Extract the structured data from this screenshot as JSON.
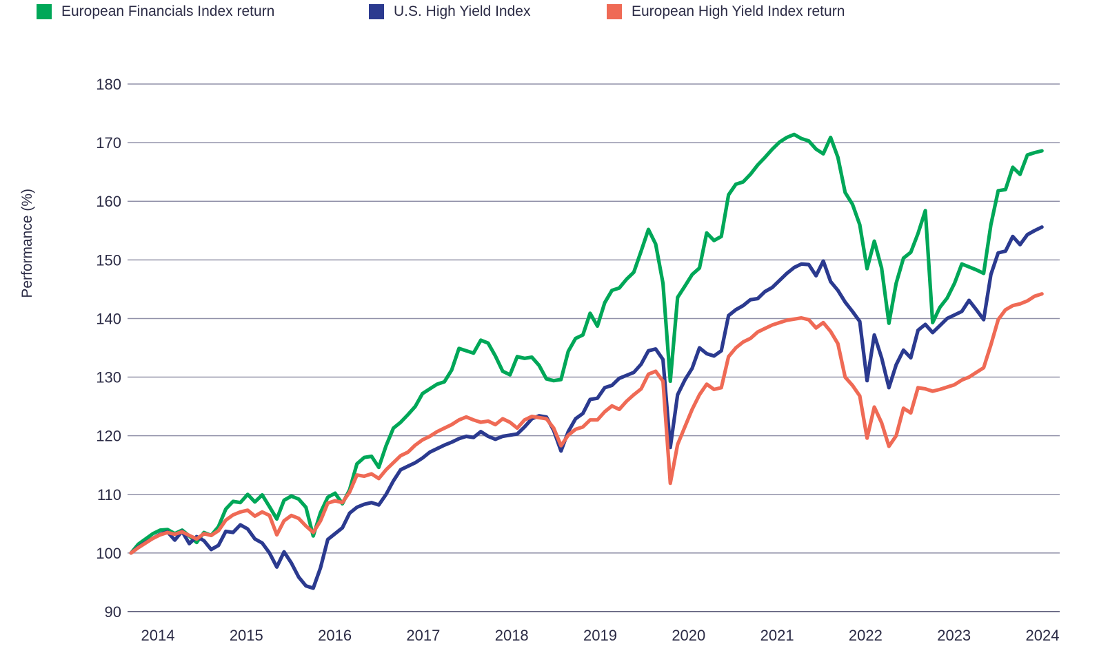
{
  "chart_data": {
    "type": "line",
    "title": "",
    "ylabel": "Performance (%)",
    "xlabel": "",
    "ylim": [
      90,
      180
    ],
    "yticks": [
      90,
      100,
      110,
      120,
      130,
      140,
      150,
      160,
      170,
      180
    ],
    "xticks": [
      "2014",
      "2015",
      "2016",
      "2017",
      "2018",
      "2019",
      "2020",
      "2021",
      "2022",
      "2023",
      "2024"
    ],
    "grid": "horizontal-only",
    "legend_position": "top-left-row",
    "x_start_year": 2014,
    "x_interval": "monthly",
    "x_end": "mid-2024",
    "axis_text_color": "#2B2B45",
    "gridline_color": "#9191A8",
    "series": [
      {
        "name": "European Financials Index return",
        "color": "#00A758",
        "values": [
          100,
          101.5,
          102.4,
          103.3,
          103.9,
          104,
          103.3,
          103.9,
          102.9,
          101.8,
          103.5,
          103,
          104.5,
          107.5,
          108.8,
          108.6,
          110,
          108.7,
          109.9,
          107.9,
          105.8,
          109,
          109.7,
          109.2,
          107.8,
          102.9,
          106.9,
          109.5,
          110.2,
          108.4,
          110.8,
          115.2,
          116.3,
          116.5,
          114.6,
          118.3,
          121.3,
          122.3,
          123.6,
          125,
          127.2,
          128,
          128.8,
          129.2,
          131.2,
          134.9,
          134.5,
          134.1,
          136.3,
          135.8,
          133.6,
          131,
          130.4,
          133.5,
          133.2,
          133.4,
          132,
          129.7,
          129.4,
          129.6,
          134.4,
          136.6,
          137.2,
          140.9,
          138.7,
          142.7,
          144.8,
          145.2,
          146.7,
          147.9,
          151.5,
          155.2,
          152.7,
          146,
          129.3,
          143.6,
          145.5,
          147.5,
          148.6,
          154.6,
          153.3,
          154,
          161.1,
          162.9,
          163.3,
          164.6,
          166.2,
          167.5,
          168.9,
          170.1,
          170.9,
          171.4,
          170.7,
          170.3,
          168.9,
          168.1,
          170.9,
          167.5,
          161.5,
          159.5,
          156,
          148.5,
          153.2,
          148.6,
          139.2,
          146,
          150.3,
          151.3,
          154.5,
          158.4,
          139.3,
          141.9,
          143.5,
          146,
          149.3,
          148.8,
          148.3,
          147.7,
          156,
          161.8,
          162,
          165.8,
          164.6,
          167.9,
          168.3,
          168.6
        ]
      },
      {
        "name": "U.S. High Yield Index",
        "color": "#2B3A8F",
        "values": [
          100,
          101,
          101.8,
          102.5,
          103.2,
          103.6,
          102.2,
          103.7,
          101.6,
          102.8,
          102.1,
          100.6,
          101.3,
          103.7,
          103.5,
          104.8,
          104.1,
          102.4,
          101.7,
          100,
          97.6,
          100.2,
          98.3,
          95.9,
          94.4,
          94,
          97.5,
          102.3,
          103.3,
          104.3,
          106.8,
          107.8,
          108.3,
          108.6,
          108.2,
          110,
          112.3,
          114.2,
          114.8,
          115.4,
          116.2,
          117.2,
          117.8,
          118.4,
          118.9,
          119.5,
          119.9,
          119.7,
          120.7,
          119.9,
          119.4,
          119.9,
          120.1,
          120.3,
          121.5,
          122.9,
          123.4,
          123.2,
          120.9,
          117.4,
          120.7,
          122.9,
          123.8,
          126.2,
          126.4,
          128.2,
          128.6,
          129.8,
          130.3,
          130.8,
          132.2,
          134.5,
          134.8,
          133,
          118,
          127,
          129.5,
          131.5,
          135,
          134,
          133.6,
          134.5,
          140.5,
          141.5,
          142.2,
          143.2,
          143.4,
          144.6,
          145.3,
          146.5,
          147.7,
          148.7,
          149.3,
          149.2,
          147.3,
          149.8,
          146.3,
          144.8,
          142.8,
          141.2,
          139.5,
          129.4,
          137.2,
          133.3,
          128.2,
          132.1,
          134.6,
          133.3,
          138,
          139,
          137.6,
          138.8,
          140,
          140.6,
          141.2,
          143.1,
          141.5,
          139.8,
          147.5,
          151.2,
          151.5,
          154,
          152.6,
          154.3,
          155,
          155.6
        ]
      },
      {
        "name": "European High Yield Index return",
        "color": "#EF6A55",
        "values": [
          100,
          100.9,
          101.7,
          102.5,
          103.1,
          103.5,
          103.2,
          103.6,
          103,
          102.4,
          103.3,
          103,
          103.8,
          105.6,
          106.5,
          107,
          107.3,
          106.3,
          107,
          106.4,
          103.1,
          105.5,
          106.4,
          105.9,
          104.6,
          103.5,
          105.5,
          108.5,
          108.9,
          108.6,
          110.4,
          113.3,
          113.1,
          113.5,
          112.7,
          114.2,
          115.4,
          116.6,
          117.2,
          118.4,
          119.3,
          119.9,
          120.7,
          121.3,
          121.9,
          122.7,
          123.2,
          122.7,
          122.3,
          122.5,
          121.9,
          122.9,
          122.3,
          121.3,
          122.7,
          123.3,
          123.1,
          122.9,
          121.3,
          118.3,
          120.1,
          121.1,
          121.5,
          122.7,
          122.7,
          124.1,
          125.1,
          124.5,
          125.9,
          127,
          128,
          130.5,
          131,
          129.3,
          111.9,
          118.5,
          121.5,
          124.5,
          127,
          128.8,
          127.9,
          128.2,
          133.5,
          135,
          136,
          136.6,
          137.7,
          138.3,
          138.9,
          139.3,
          139.7,
          139.9,
          140.1,
          139.8,
          138.4,
          139.3,
          137.8,
          135.7,
          130,
          128.6,
          126.8,
          119.6,
          124.9,
          122.2,
          118.2,
          120,
          124.7,
          123.9,
          128.2,
          128,
          127.6,
          127.9,
          128.3,
          128.7,
          129.5,
          130,
          130.8,
          131.6,
          135.5,
          139.8,
          141.5,
          142.2,
          142.5,
          143,
          143.8,
          144.2
        ]
      }
    ]
  }
}
